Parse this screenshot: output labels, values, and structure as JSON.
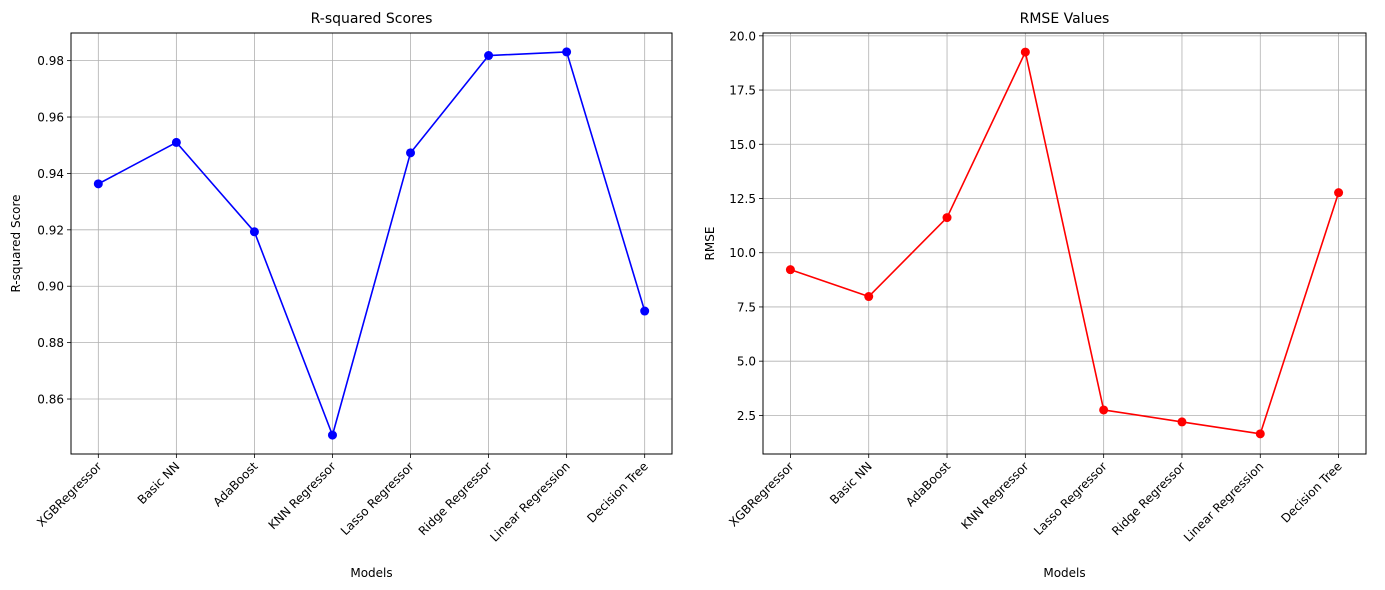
{
  "chart_data": [
    {
      "type": "line",
      "title": "R-squared Scores",
      "xlabel": "Models",
      "ylabel": "R-squared Score",
      "categories": [
        "XGBRegressor",
        "Basic NN",
        "AdaBoost",
        "KNN Regressor",
        "Lasso Regressor",
        "Ridge Regressor",
        "Linear Regression",
        "Decision Tree"
      ],
      "series": [
        {
          "values": [
            0.9363,
            0.951,
            0.9193,
            0.8472,
            0.9473,
            0.9818,
            0.9831,
            0.8912
          ],
          "color": "#0000ff",
          "marker": "circle"
        }
      ],
      "ylim": [
        0.8405,
        0.9898
      ],
      "yticks": [
        0.86,
        0.88,
        0.9,
        0.92,
        0.94,
        0.96,
        0.98
      ],
      "ytick_labels": [
        "0.86",
        "0.88",
        "0.90",
        "0.92",
        "0.94",
        "0.96",
        "0.98"
      ],
      "grid": true,
      "legend": false
    },
    {
      "type": "line",
      "title": "RMSE Values",
      "xlabel": "Models",
      "ylabel": "RMSE",
      "categories": [
        "XGBRegressor",
        "Basic NN",
        "AdaBoost",
        "KNN Regressor",
        "Lasso Regressor",
        "Ridge Regressor",
        "Linear Regression",
        "Decision Tree"
      ],
      "series": [
        {
          "values": [
            9.22,
            7.98,
            11.62,
            19.25,
            2.75,
            2.2,
            1.65,
            12.77
          ],
          "color": "#ff0000",
          "marker": "circle"
        }
      ],
      "ylim": [
        0.72,
        20.13
      ],
      "yticks": [
        2.5,
        5.0,
        7.5,
        10.0,
        12.5,
        15.0,
        17.5,
        20.0
      ],
      "ytick_labels": [
        "2.5",
        "5.0",
        "7.5",
        "10.0",
        "12.5",
        "15.0",
        "17.5",
        "20.0"
      ],
      "grid": true,
      "legend": false
    }
  ]
}
